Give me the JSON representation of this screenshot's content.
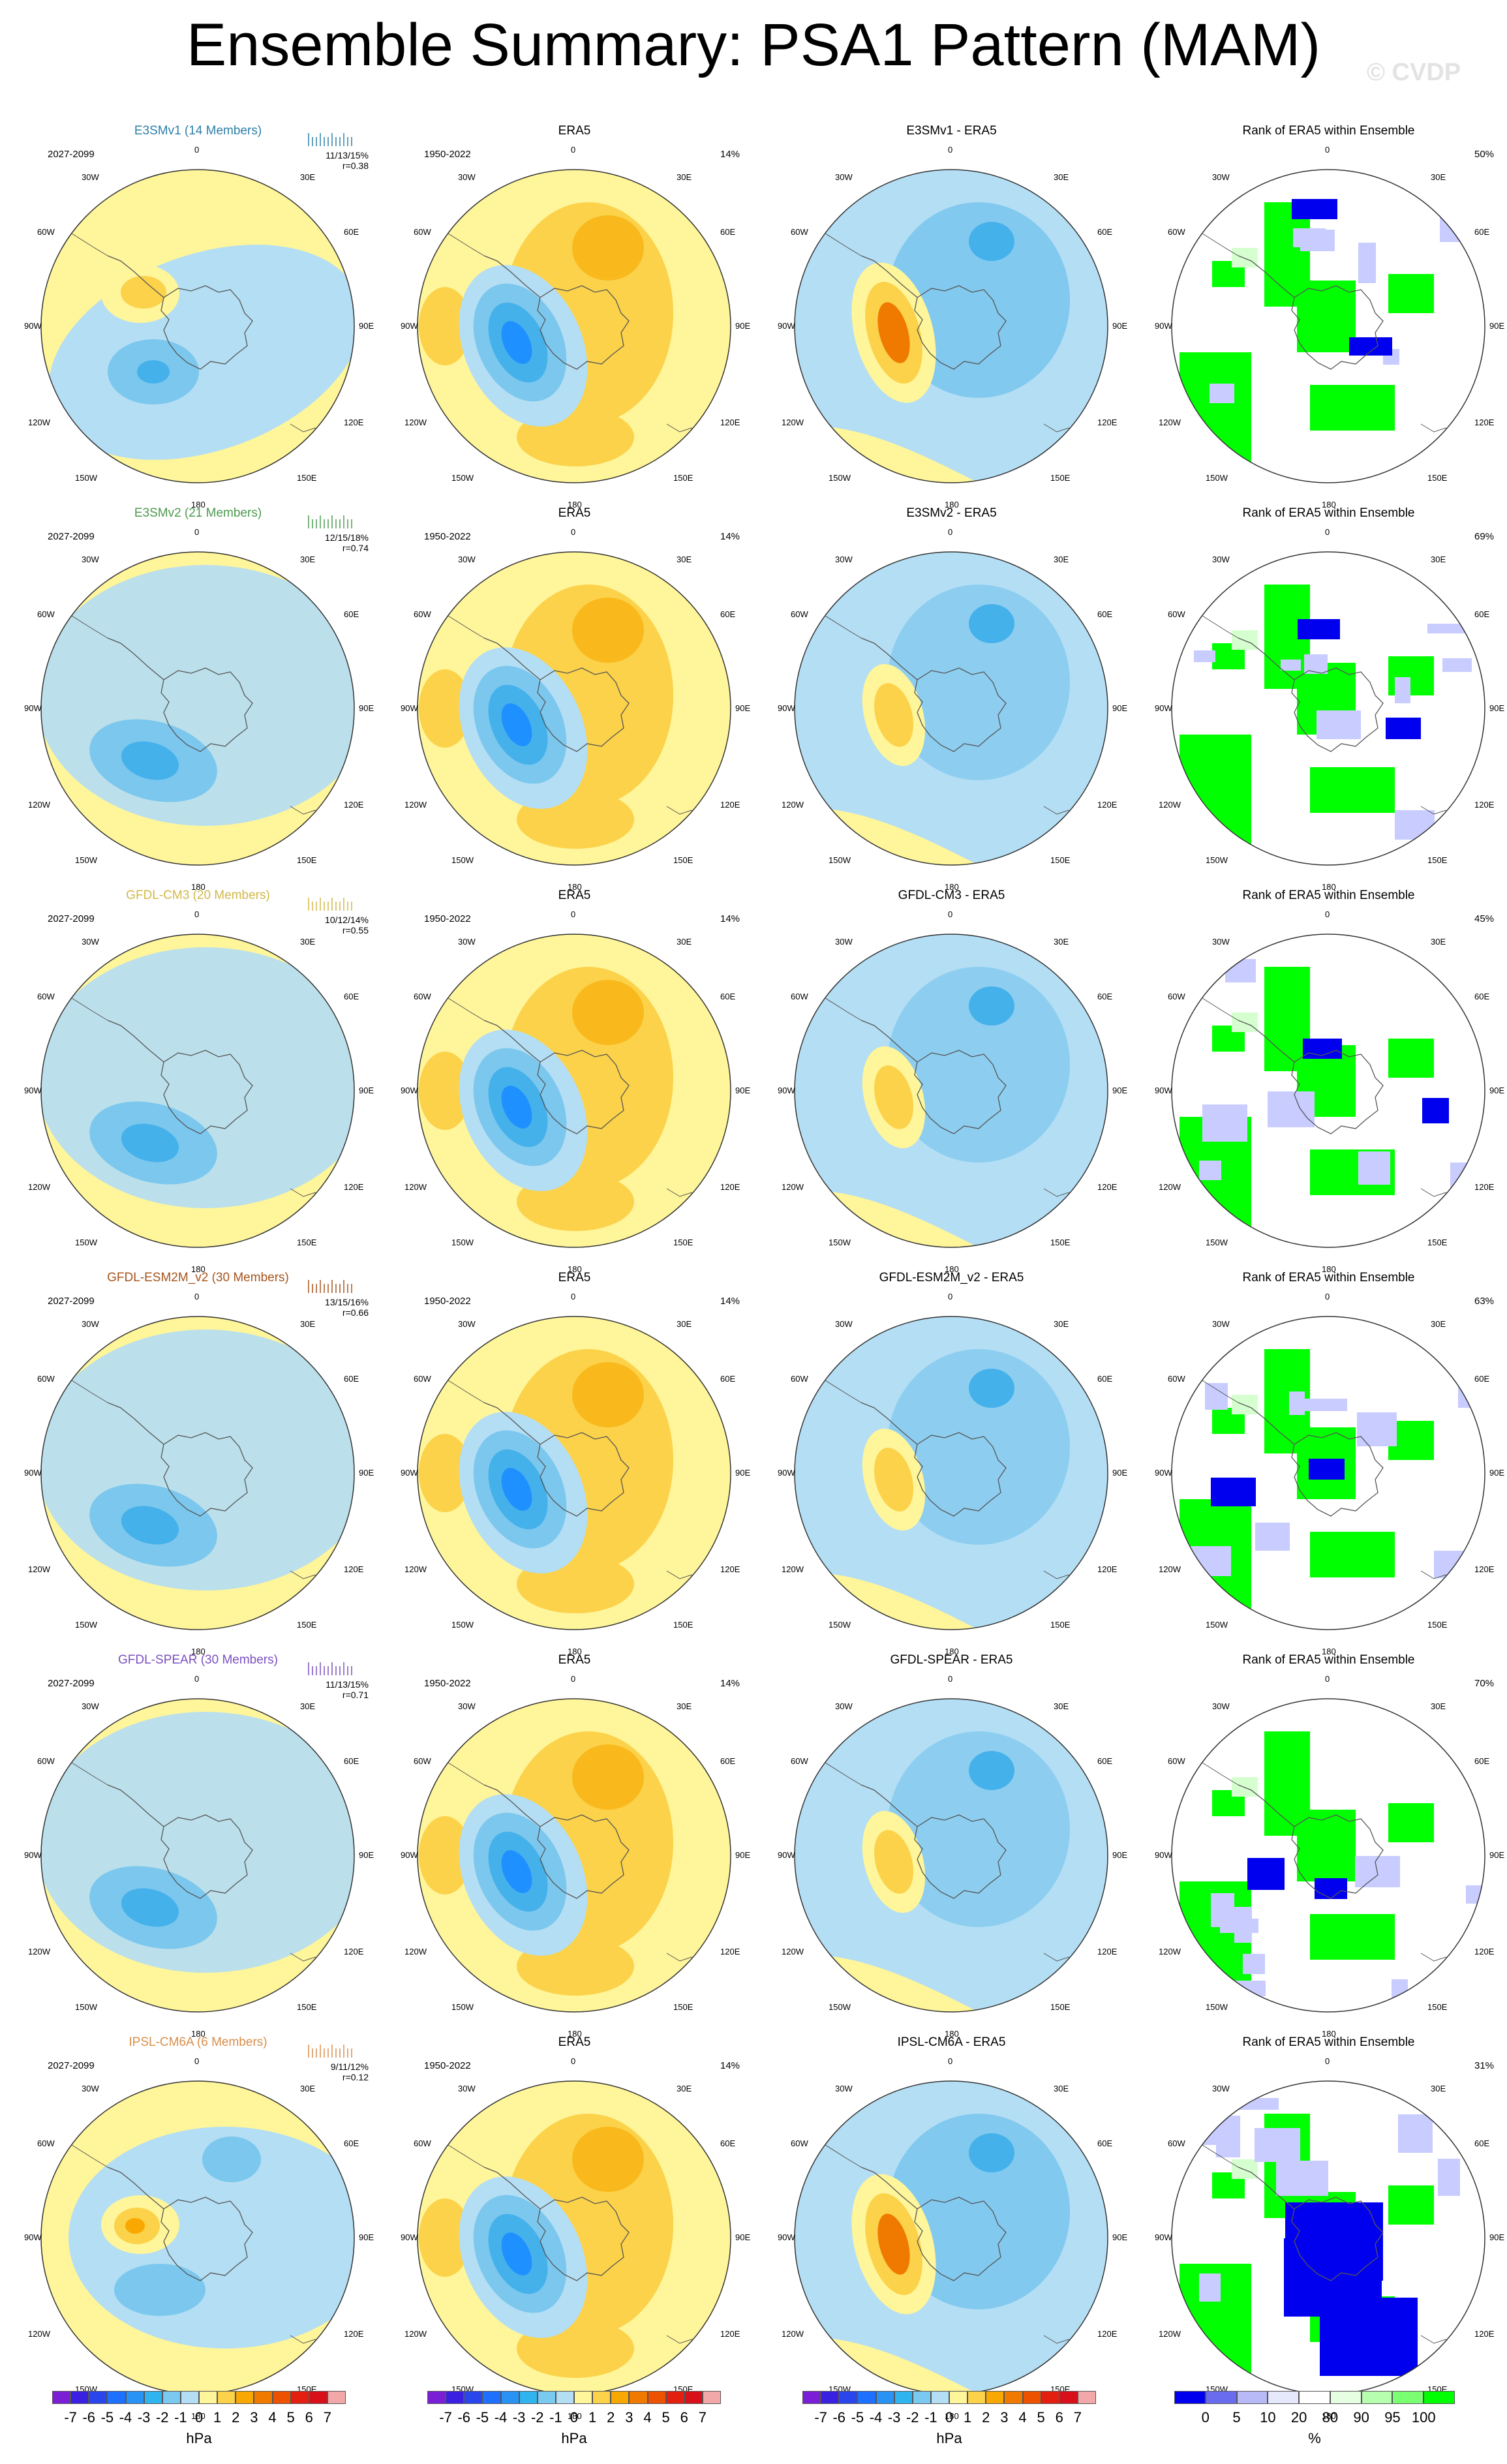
{
  "title": "Ensemble Summary: PSA1 Pattern (MAM)",
  "watermark": "© CVDP",
  "colors": {
    "model_title": [
      "#2e7fa8",
      "#4d9a4f",
      "#d2b84a",
      "#a5541b",
      "#7b4fc0",
      "#d98e4c"
    ],
    "neg_light": "#b4def4",
    "neg_mid": "#7cc7ee",
    "neg_strong": "#45b1ea",
    "neg_deep": "#1e90ff",
    "pos_light": "#fff59a",
    "pos_mid": "#fbd24a",
    "pos_strong": "#f8a800",
    "pos_deep": "#f07a00",
    "rank_green": "#00ff00",
    "rank_blue": "#0000ee",
    "rank_lightblue": "#c8ccff",
    "rank_lightgreen": "#d6ffd0"
  },
  "map_labels": {
    "top": "0",
    "bottom": "180",
    "left": "90W",
    "right": "90E",
    "ul1": "30W",
    "ul2": "60W",
    "ur1": "30E",
    "ur2": "60E",
    "ll1": "120W",
    "ll2": "150W",
    "lr1": "120E",
    "lr2": "150E"
  },
  "rows": [
    {
      "model": "E3SMv1 (14 Members)",
      "period": "2027-2099",
      "stats": "11/13/15%",
      "r": "r=0.38",
      "obs_title": "ERA5",
      "obs_period": "1950-2022",
      "obs_pct": "14%",
      "diff_title": "E3SMv1 - ERA5",
      "rank_title": "Rank of ERA5 within Ensemble",
      "rank_pct": "50%"
    },
    {
      "model": "E3SMv2 (21 Members)",
      "period": "2027-2099",
      "stats": "12/15/18%",
      "r": "r=0.74",
      "obs_title": "ERA5",
      "obs_period": "1950-2022",
      "obs_pct": "14%",
      "diff_title": "E3SMv2 - ERA5",
      "rank_title": "Rank of ERA5 within Ensemble",
      "rank_pct": "69%"
    },
    {
      "model": "GFDL-CM3 (20 Members)",
      "period": "2027-2099",
      "stats": "10/12/14%",
      "r": "r=0.55",
      "obs_title": "ERA5",
      "obs_period": "1950-2022",
      "obs_pct": "14%",
      "diff_title": "GFDL-CM3 - ERA5",
      "rank_title": "Rank of ERA5 within Ensemble",
      "rank_pct": "45%"
    },
    {
      "model": "GFDL-ESM2M_v2 (30 Members)",
      "period": "2027-2099",
      "stats": "13/15/16%",
      "r": "r=0.66",
      "obs_title": "ERA5",
      "obs_period": "1950-2022",
      "obs_pct": "14%",
      "diff_title": "GFDL-ESM2M_v2 - ERA5",
      "rank_title": "Rank of ERA5 within Ensemble",
      "rank_pct": "63%"
    },
    {
      "model": "GFDL-SPEAR (30 Members)",
      "period": "2027-2099",
      "stats": "11/13/15%",
      "r": "r=0.71",
      "obs_title": "ERA5",
      "obs_period": "1950-2022",
      "obs_pct": "14%",
      "diff_title": "GFDL-SPEAR - ERA5",
      "rank_title": "Rank of ERA5 within Ensemble",
      "rank_pct": "70%"
    },
    {
      "model": "IPSL-CM6A (6 Members)",
      "period": "2027-2099",
      "stats": "9/11/12%",
      "r": "r=0.12",
      "obs_title": "ERA5",
      "obs_period": "1950-2022",
      "obs_pct": "14%",
      "diff_title": "IPSL-CM6A - ERA5",
      "rank_title": "Rank of ERA5 within Ensemble",
      "rank_pct": "31%"
    }
  ],
  "chart_data": {
    "type": "heatmap",
    "description_type": "polar stereographic contour maps of PSA1 pattern",
    "hpa_colorbar": {
      "ticks": [
        "-7",
        "-6",
        "-5",
        "-4",
        "-3",
        "-2",
        "-1",
        "0",
        "1",
        "2",
        "3",
        "4",
        "5",
        "6",
        "7"
      ],
      "unit": "hPa",
      "colors": [
        "#7a1fd6",
        "#3a20e0",
        "#2946ec",
        "#1e70ff",
        "#2893f4",
        "#30b4f0",
        "#79c9f0",
        "#b4def4",
        "#fff59a",
        "#fbd24a",
        "#f8a800",
        "#f07a00",
        "#ec5200",
        "#e32010",
        "#d8101a",
        "#f2a8a8"
      ]
    },
    "rank_colorbar": {
      "ticks": [
        "0",
        "5",
        "10",
        "20",
        "80",
        "90",
        "95",
        "100"
      ],
      "unit": "%",
      "colors": [
        "#0000ee",
        "#6a6cf0",
        "#b8baf7",
        "#e6e8fc",
        "#ffffff",
        "#e6ffe2",
        "#b6ffae",
        "#7aff72",
        "#00ff00"
      ]
    }
  }
}
